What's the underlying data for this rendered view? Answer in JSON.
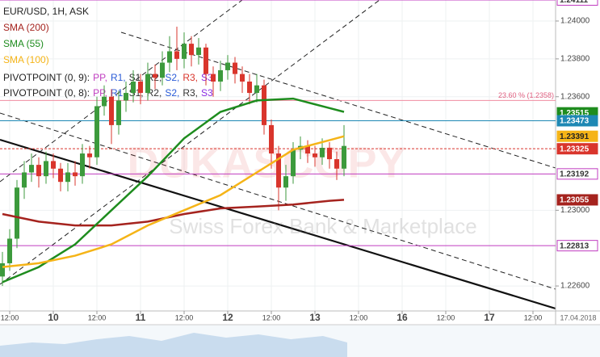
{
  "chart_data": {
    "type": "candlestick",
    "title": "EUR/USD, 1H, ASK",
    "xlim": [
      9.33,
      162.22
    ],
    "ylim": [
      1.22468,
      1.24111
    ],
    "grid": true,
    "xticks": [
      {
        "value": 12,
        "label": "12:00"
      },
      {
        "value": 24,
        "label": "10"
      },
      {
        "value": 36,
        "label": "12:00"
      },
      {
        "value": 48,
        "label": "11"
      },
      {
        "value": 60,
        "label": "12:00"
      },
      {
        "value": 72,
        "label": "12"
      },
      {
        "value": 84,
        "label": "12:00"
      },
      {
        "value": 96,
        "label": "13"
      },
      {
        "value": 108,
        "label": "12:00"
      },
      {
        "value": 120,
        "label": "16"
      },
      {
        "value": 132,
        "label": "12:00"
      },
      {
        "value": 144,
        "label": "17"
      },
      {
        "value": 156,
        "label": "12:00"
      }
    ],
    "date_label": "17.04.2018",
    "yticks": [
      {
        "value": 1.226,
        "label": "1.22600"
      },
      {
        "value": 1.23,
        "label": "1.23000"
      },
      {
        "value": 1.236,
        "label": "1.23600"
      },
      {
        "value": 1.238,
        "label": "1.23800"
      },
      {
        "value": 1.24,
        "label": "1.24000"
      }
    ],
    "up_color": "#3c9a3c",
    "down_color": "#d9352c",
    "x": [
      10,
      12,
      14,
      16,
      18,
      20,
      22,
      24,
      26,
      28,
      30,
      32,
      34,
      36,
      38,
      40,
      42,
      44,
      46,
      48,
      50,
      52,
      54,
      56,
      58,
      60,
      62,
      64,
      66,
      68,
      70,
      72,
      74,
      76,
      78,
      80,
      82,
      84,
      86,
      88,
      90,
      92,
      94,
      96,
      98,
      100,
      102,
      104
    ],
    "open": [
      1.2265,
      1.2272,
      1.2285,
      1.2312,
      1.232,
      1.2324,
      1.2318,
      1.2326,
      1.2322,
      1.2315,
      1.232,
      1.2318,
      1.233,
      1.2328,
      1.2355,
      1.236,
      1.2345,
      1.2358,
      1.2362,
      1.2368,
      1.2362,
      1.2372,
      1.237,
      1.2378,
      1.2384,
      1.238,
      1.2388,
      1.2382,
      1.2386,
      1.2372,
      1.2368,
      1.2374,
      1.2378,
      1.2372,
      1.2368,
      1.2362,
      1.2366,
      1.2345,
      1.233,
      1.2312,
      1.2318,
      1.2332,
      1.2334,
      1.233,
      1.2328,
      1.2333,
      1.2327,
      1.2322
    ],
    "high": [
      1.2278,
      1.229,
      1.2316,
      1.2326,
      1.233,
      1.2328,
      1.2331,
      1.233,
      1.2325,
      1.2325,
      1.2326,
      1.2335,
      1.2334,
      1.236,
      1.2366,
      1.2364,
      1.2363,
      1.2368,
      1.2374,
      1.2372,
      1.2378,
      1.2377,
      1.2384,
      1.2392,
      1.2397,
      1.2394,
      1.2392,
      1.2391,
      1.2388,
      1.2376,
      1.2379,
      1.2382,
      1.2381,
      1.2376,
      1.2372,
      1.2372,
      1.2369,
      1.2348,
      1.2334,
      1.2324,
      1.2336,
      1.2339,
      1.2337,
      1.2334,
      1.2338,
      1.2336,
      1.2331,
      1.2345
    ],
    "low": [
      1.226,
      1.2268,
      1.228,
      1.2306,
      1.2315,
      1.2312,
      1.2314,
      1.2317,
      1.231,
      1.231,
      1.2313,
      1.2314,
      1.2322,
      1.2324,
      1.235,
      1.2335,
      1.234,
      1.2352,
      1.2357,
      1.2356,
      1.2358,
      1.2364,
      1.2366,
      1.2373,
      1.2374,
      1.2375,
      1.2376,
      1.2377,
      1.2366,
      1.236,
      1.2363,
      1.2369,
      1.2367,
      1.2362,
      1.2356,
      1.2357,
      1.234,
      1.2322,
      1.23,
      1.2305,
      1.2314,
      1.2327,
      1.2325,
      1.2323,
      1.2324,
      1.2322,
      1.2316,
      1.2318
    ],
    "close": [
      1.2272,
      1.2285,
      1.2312,
      1.232,
      1.2324,
      1.2318,
      1.2326,
      1.2322,
      1.2315,
      1.232,
      1.2318,
      1.233,
      1.2328,
      1.2355,
      1.236,
      1.2345,
      1.2358,
      1.2362,
      1.2368,
      1.2362,
      1.2372,
      1.237,
      1.2378,
      1.2384,
      1.238,
      1.2388,
      1.2382,
      1.2386,
      1.2372,
      1.2368,
      1.2374,
      1.2378,
      1.2372,
      1.2368,
      1.2362,
      1.2366,
      1.2345,
      1.233,
      1.2312,
      1.2318,
      1.2332,
      1.2334,
      1.233,
      1.2328,
      1.2333,
      1.2327,
      1.2322,
      1.2334
    ],
    "series": [
      {
        "name": "SMA (200)",
        "color": "#a5231e",
        "x": [
          10,
          20,
          30,
          40,
          50,
          60,
          70,
          80,
          90,
          100,
          104
        ],
        "values": [
          1.2298,
          1.2294,
          1.2292,
          1.2292,
          1.2294,
          1.2298,
          1.2301,
          1.2302,
          1.2303,
          1.2305,
          1.23055
        ]
      },
      {
        "name": "SMA (55)",
        "color": "#1e8c1e",
        "x": [
          10,
          20,
          30,
          40,
          50,
          60,
          70,
          80,
          90,
          100,
          104
        ],
        "values": [
          1.2262,
          1.227,
          1.2282,
          1.23,
          1.2318,
          1.2338,
          1.2352,
          1.2358,
          1.2359,
          1.2354,
          1.2352
        ]
      },
      {
        "name": "SMA (100)",
        "color": "#f5b417",
        "x": [
          10,
          20,
          30,
          40,
          50,
          60,
          70,
          80,
          90,
          100,
          104
        ],
        "values": [
          1.227,
          1.2272,
          1.2276,
          1.2282,
          1.2292,
          1.23,
          1.2308,
          1.232,
          1.2332,
          1.2337,
          1.23391
        ]
      }
    ],
    "pivot_legends": [
      {
        "label": "PIVOTPOINT (0, 9):",
        "items": [
          {
            "name": "PP,",
            "color": "#c03cc0"
          },
          {
            "name": "R1,",
            "color": "#2a5bd7"
          },
          {
            "name": "S1,",
            "color": "#333333"
          },
          {
            "name": "R2,",
            "color": "#333333"
          },
          {
            "name": "S2,",
            "color": "#2a5bd7"
          },
          {
            "name": "R3,",
            "color": "#d9352c"
          },
          {
            "name": "S3",
            "color": "#8a2be2"
          }
        ]
      },
      {
        "label": "PIVOTPOINT (0, 8):",
        "items": [
          {
            "name": "PP,",
            "color": "#c03cc0"
          },
          {
            "name": "R1,",
            "color": "#2a5bd7"
          },
          {
            "name": "S1,",
            "color": "#333333"
          },
          {
            "name": "R2,",
            "color": "#333333"
          },
          {
            "name": "S2,",
            "color": "#2a5bd7"
          },
          {
            "name": "R3,",
            "color": "#333333"
          },
          {
            "name": "S3",
            "color": "#8a2be2"
          }
        ]
      }
    ],
    "levels": [
      {
        "value": 1.24111,
        "color": "#c03cc0",
        "dash": false
      },
      {
        "value": 1.2358,
        "color": "#f08ca0",
        "dash": false
      },
      {
        "value": 1.23473,
        "color": "#1e88b4",
        "dash": false
      },
      {
        "value": 1.23325,
        "color": "#d9352c",
        "dash": true
      },
      {
        "value": 1.23192,
        "color": "#c03cc0",
        "dash": false
      },
      {
        "value": 1.22813,
        "color": "#c03cc0",
        "dash": false
      }
    ],
    "fib_label": {
      "label": "23.60 % (1.2358)",
      "value": 1.2358,
      "color": "#e06080"
    },
    "price_labels": [
      {
        "value": 1.24111,
        "label": "1.24111",
        "bg": "#ffffff",
        "fg": "#333333",
        "border": "#c03cc0"
      },
      {
        "value": 1.23515,
        "label": "1.23515",
        "bg": "#1e8c1e",
        "fg": "#ffffff",
        "border": "#1e8c1e"
      },
      {
        "value": 1.23473,
        "label": "1.23473",
        "bg": "#1e88b4",
        "fg": "#ffffff",
        "border": "#1e88b4"
      },
      {
        "value": 1.23391,
        "label": "1.23391",
        "bg": "#f5b417",
        "fg": "#222222",
        "border": "#f5b417"
      },
      {
        "value": 1.23325,
        "label": "1.23325",
        "bg": "#d9352c",
        "fg": "#ffffff",
        "border": "#d9352c"
      },
      {
        "value": 1.23192,
        "label": "1.23192",
        "bg": "#ffffff",
        "fg": "#333333",
        "border": "#c03cc0"
      },
      {
        "value": 1.23055,
        "label": "1.23055",
        "bg": "#a5231e",
        "fg": "#ffffff",
        "border": "#a5231e"
      },
      {
        "value": 1.22813,
        "label": "1.22813",
        "bg": "#ffffff",
        "fg": "#333333",
        "border": "#c03cc0"
      }
    ],
    "watermark": {
      "brand": "DUKASCOPY",
      "tagline": "Swiss Forex Bank & Marketplace"
    }
  }
}
